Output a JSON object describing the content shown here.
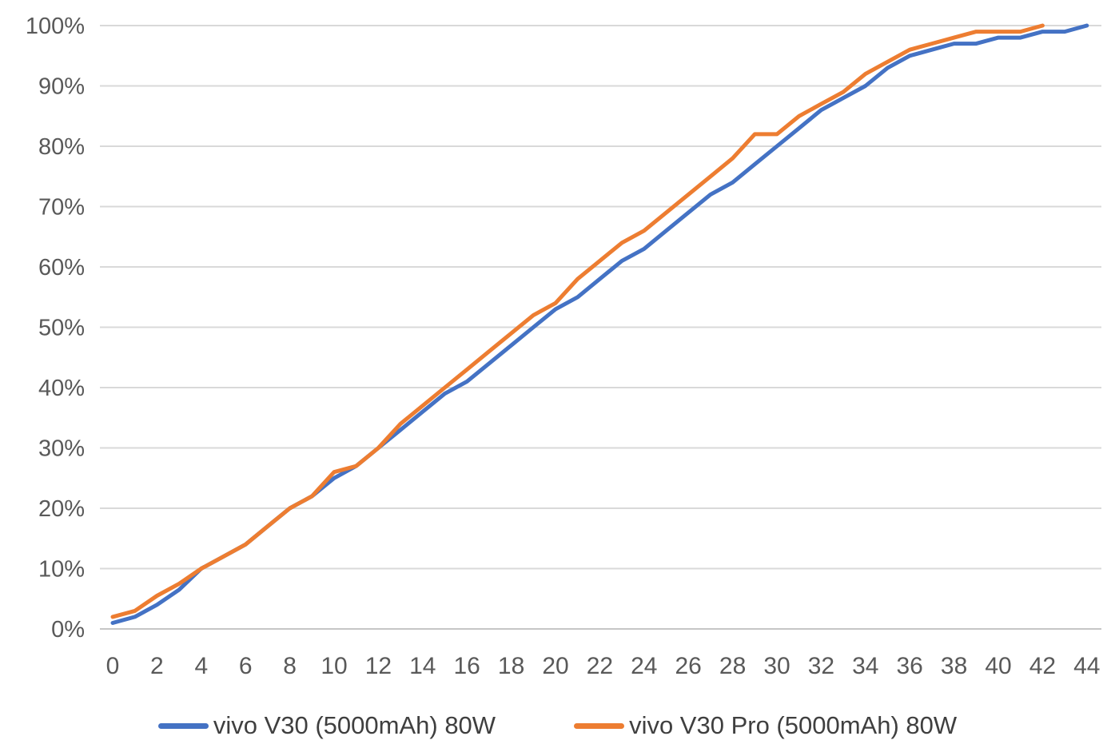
{
  "chart_data": {
    "type": "line",
    "title": "",
    "xlabel": "",
    "ylabel": "",
    "xlim": [
      0,
      44
    ],
    "ylim": [
      0,
      100
    ],
    "grid": "horizontal",
    "legend_position": "bottom",
    "x_ticks": [
      0,
      2,
      4,
      6,
      8,
      10,
      12,
      14,
      16,
      18,
      20,
      22,
      24,
      26,
      28,
      30,
      32,
      34,
      36,
      38,
      40,
      42,
      44
    ],
    "y_ticks": [
      "0%",
      "10%",
      "20%",
      "30%",
      "40%",
      "50%",
      "60%",
      "70%",
      "80%",
      "90%",
      "100%"
    ],
    "y_tick_values": [
      0,
      10,
      20,
      30,
      40,
      50,
      60,
      70,
      80,
      90,
      100
    ],
    "series": [
      {
        "name": "vivo V30 (5000mAh) 80W",
        "color": "#4472C4",
        "x": [
          0,
          1,
          2,
          3,
          4,
          5,
          6,
          7,
          8,
          9,
          10,
          11,
          12,
          13,
          14,
          15,
          16,
          17,
          18,
          19,
          20,
          21,
          22,
          23,
          24,
          25,
          26,
          27,
          28,
          29,
          30,
          31,
          32,
          33,
          34,
          35,
          36,
          37,
          38,
          39,
          40,
          41,
          42,
          43,
          44
        ],
        "values": [
          1,
          2,
          4,
          6.5,
          10,
          12,
          14,
          17,
          20,
          22,
          25,
          27,
          30,
          33,
          36,
          39,
          41,
          44,
          47,
          50,
          53,
          55,
          58,
          61,
          63,
          66,
          69,
          72,
          74,
          77,
          80,
          83,
          86,
          88,
          90,
          93,
          95,
          96,
          97,
          97,
          98,
          98,
          99,
          99,
          100
        ]
      },
      {
        "name": "vivo V30 Pro (5000mAh) 80W",
        "color": "#ED7D31",
        "x": [
          0,
          1,
          2,
          3,
          4,
          5,
          6,
          7,
          8,
          9,
          10,
          11,
          12,
          13,
          14,
          15,
          16,
          17,
          18,
          19,
          20,
          21,
          22,
          23,
          24,
          25,
          26,
          27,
          28,
          29,
          30,
          31,
          32,
          33,
          34,
          35,
          36,
          37,
          38,
          39,
          40,
          41,
          42
        ],
        "values": [
          2,
          3,
          5.5,
          7.5,
          10,
          12,
          14,
          17,
          20,
          22,
          26,
          27,
          30,
          34,
          37,
          40,
          43,
          46,
          49,
          52,
          54,
          58,
          61,
          64,
          66,
          69,
          72,
          75,
          78,
          82,
          82,
          85,
          87,
          89,
          92,
          94,
          96,
          97,
          98,
          99,
          99,
          99,
          100
        ]
      }
    ]
  },
  "colors": {
    "background": "#ffffff",
    "gridline": "#d9d9d9",
    "axis_line": "#c6c6c6",
    "axis_text": "#595959",
    "legend_text": "#3f3f3f"
  }
}
